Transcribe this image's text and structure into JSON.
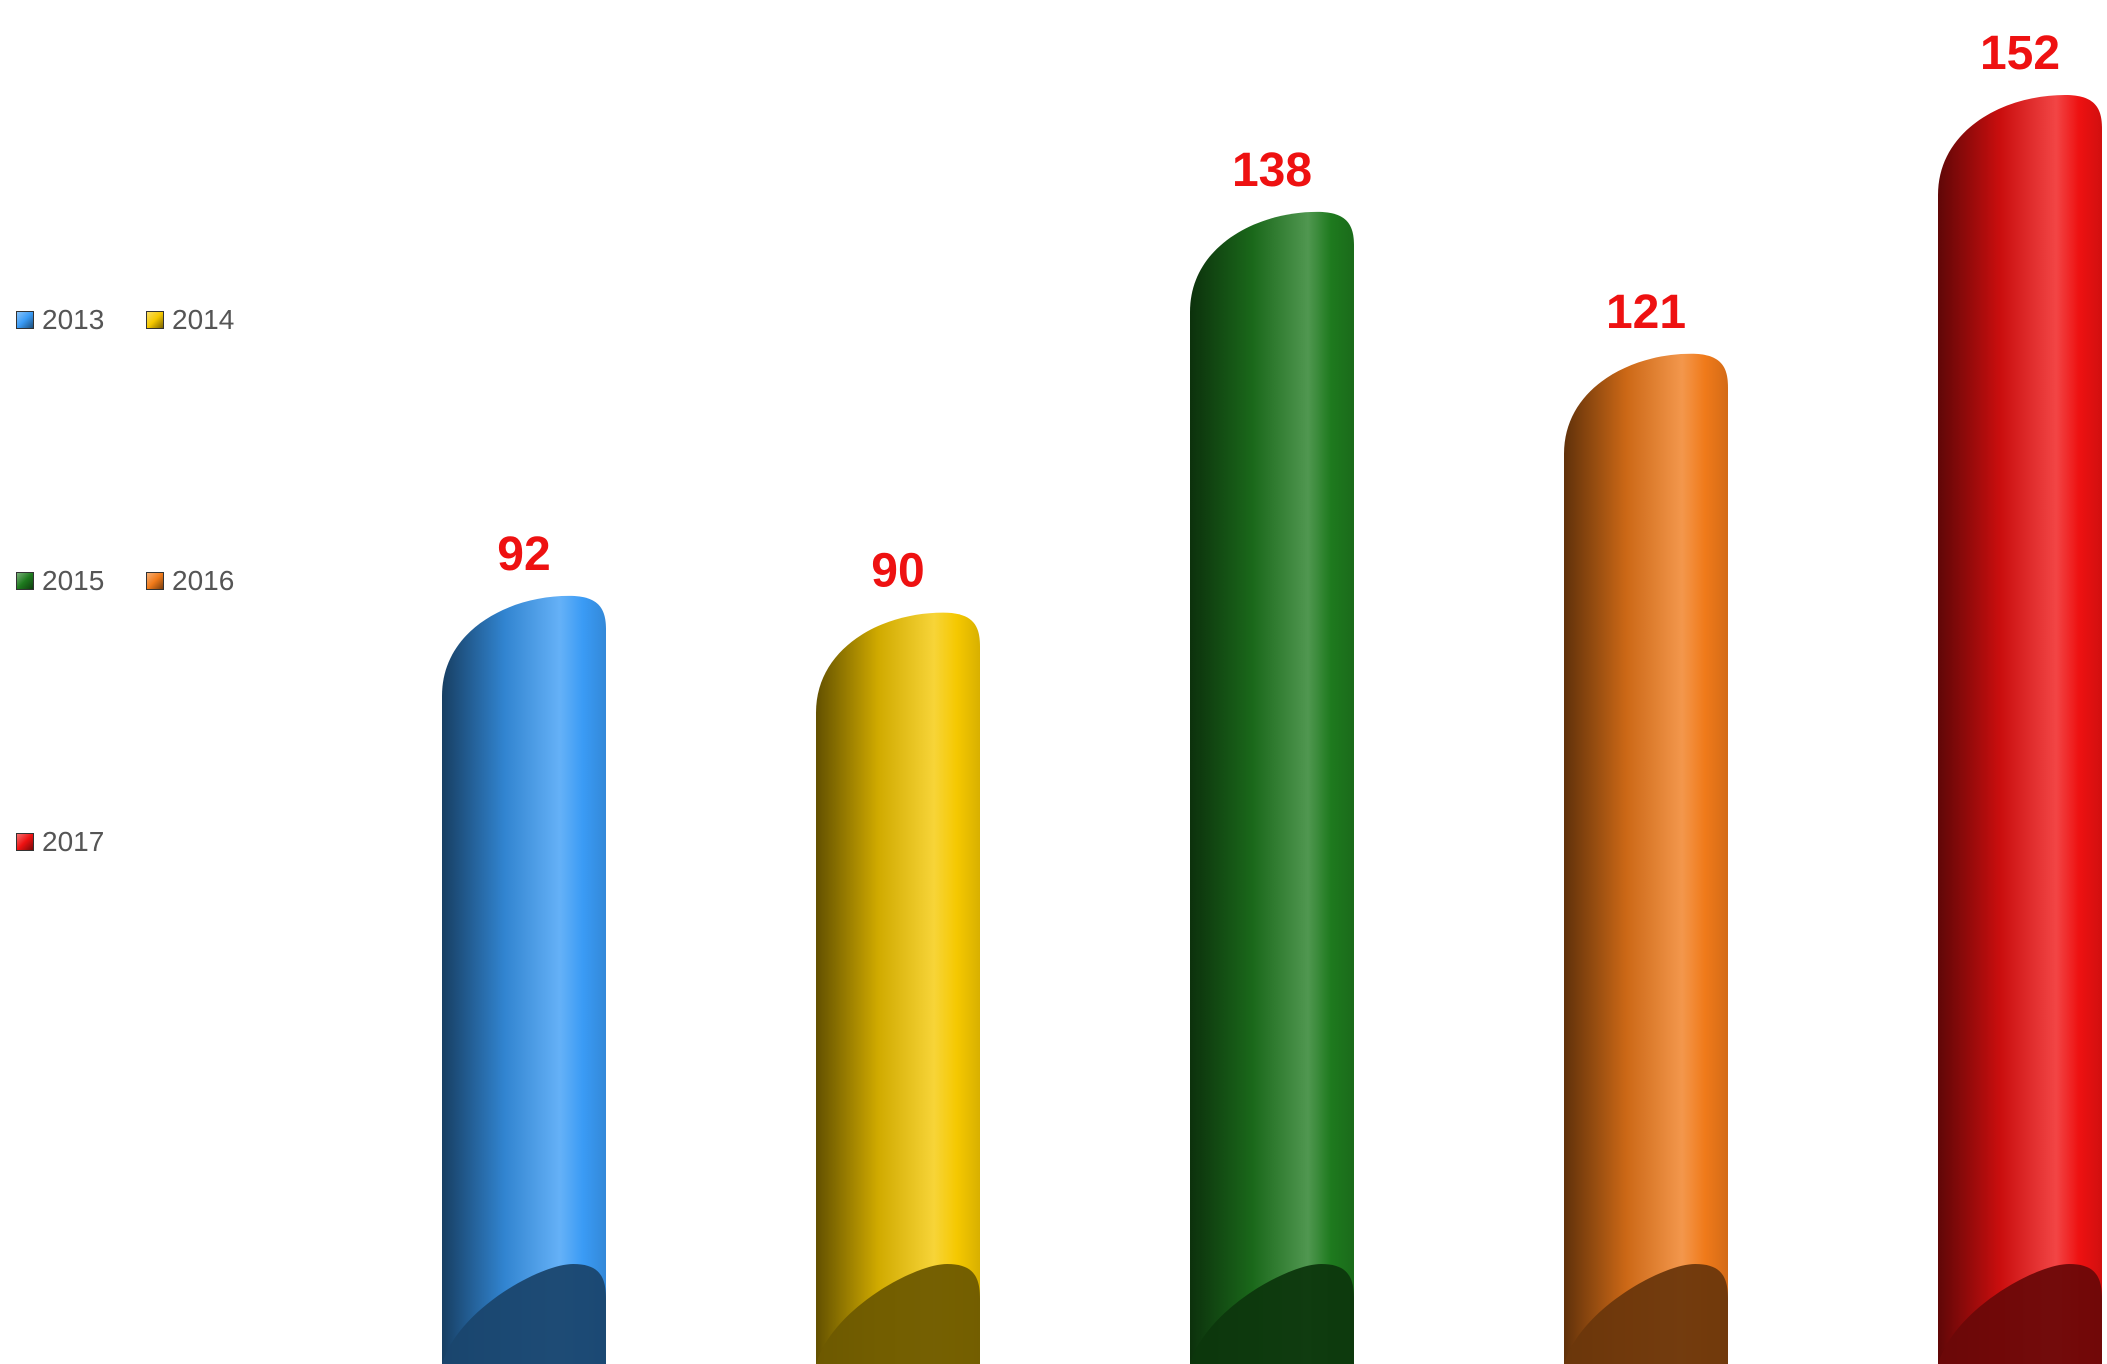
{
  "chart_data": {
    "type": "bar",
    "style": "3d-cylinder",
    "categories": [
      "2013",
      "2014",
      "2015",
      "2016",
      "2017"
    ],
    "values": [
      92,
      90,
      138,
      121,
      152
    ],
    "colors": [
      "#3A9BF5",
      "#F5C800",
      "#1E7A1E",
      "#F07A1A",
      "#EE1111"
    ],
    "data_label_color": "#EE1111",
    "title": "",
    "xlabel": "",
    "ylabel": "",
    "ylim": [
      0,
      152
    ],
    "grid": false,
    "legend": {
      "position": "left",
      "entries": [
        "2013",
        "2014",
        "2015",
        "2016",
        "2017"
      ]
    }
  }
}
